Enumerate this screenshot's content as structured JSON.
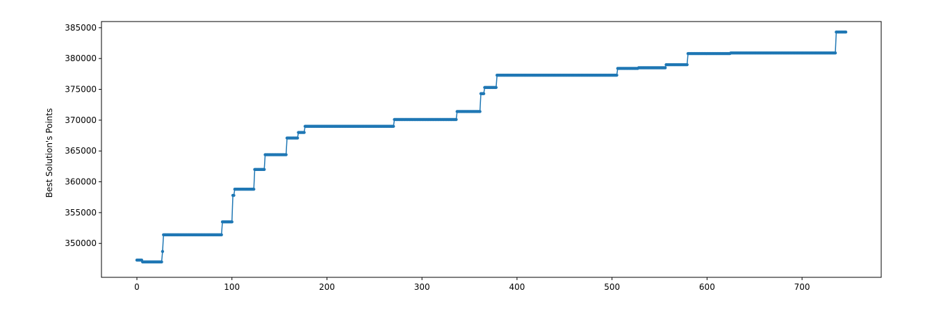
{
  "chart_data": {
    "type": "line",
    "title": "",
    "xlabel": "",
    "ylabel": "Best Solution's Points",
    "xlim": [
      -37.3,
      783.3
    ],
    "ylim": [
      344500,
      386000
    ],
    "x_ticks": [
      0,
      100,
      200,
      300,
      400,
      500,
      600,
      700
    ],
    "y_ticks": [
      350000,
      355000,
      360000,
      365000,
      370000,
      375000,
      380000,
      385000
    ],
    "grid": false,
    "legend": "none",
    "series_color": "#1f77b4",
    "steps": [
      [
        0,
        347300
      ],
      [
        6,
        347000
      ],
      [
        27,
        348700
      ],
      [
        28,
        351400
      ],
      [
        90,
        353500
      ],
      [
        101,
        357800
      ],
      [
        103,
        358800
      ],
      [
        124,
        362000
      ],
      [
        135,
        364400
      ],
      [
        158,
        367100
      ],
      [
        170,
        368000
      ],
      [
        177,
        369000
      ],
      [
        271,
        370100
      ],
      [
        337,
        371400
      ],
      [
        362,
        374300
      ],
      [
        366,
        375300
      ],
      [
        379,
        377300
      ],
      [
        506,
        378400
      ],
      [
        528,
        378500
      ],
      [
        557,
        379000
      ],
      [
        580,
        380800
      ],
      [
        625,
        380900
      ],
      [
        736,
        384300
      ]
    ],
    "x_end": 746
  }
}
